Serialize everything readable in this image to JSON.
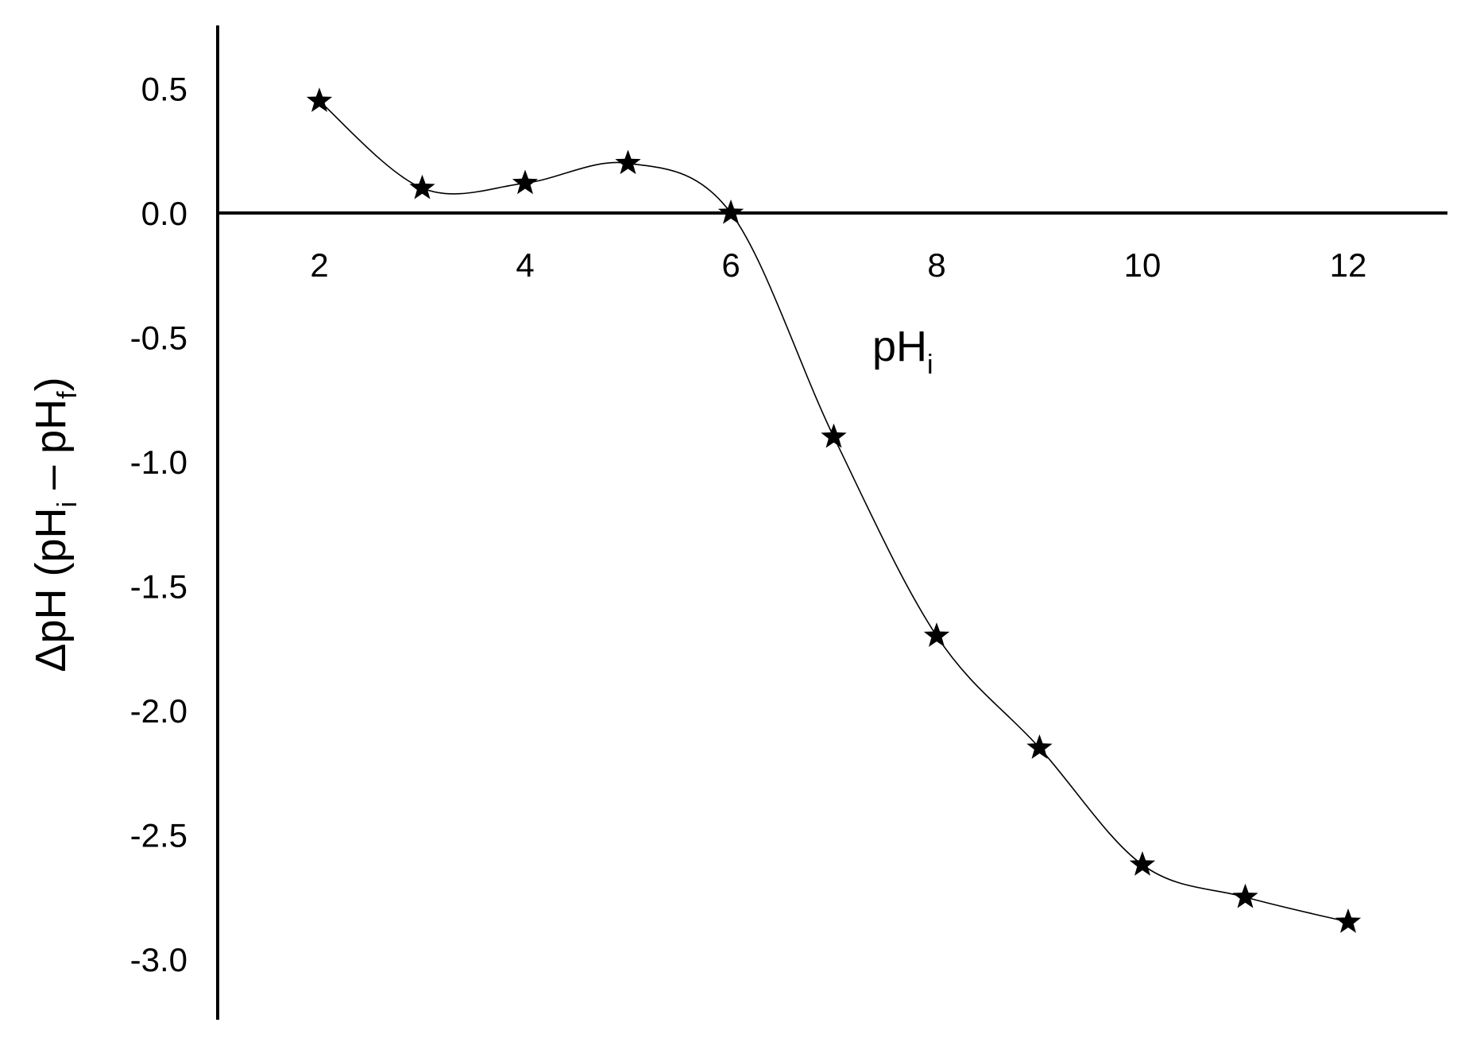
{
  "chart_data": {
    "type": "line",
    "title": "",
    "xlabel": {
      "main": "pH",
      "sub": "i"
    },
    "ylabel": {
      "part1": "ΔpH (pH",
      "sub1": "i",
      "part2": " – pH",
      "sub2": "f",
      "part3": ")"
    },
    "x_ticks": [
      2,
      4,
      6,
      8,
      10,
      12
    ],
    "y_ticks": [
      "0.5",
      "0.0",
      "-0.5",
      "-1.0",
      "-1.5",
      "-2.0",
      "-2.5",
      "-3.0"
    ],
    "xlim": [
      1,
      13
    ],
    "ylim": [
      -3.3,
      0.75
    ],
    "marker": "star",
    "smooth_curve": true,
    "grid": false,
    "series": [
      {
        "x": [
          2,
          3,
          4,
          5,
          6,
          7,
          8,
          9,
          10,
          11,
          12
        ],
        "y": [
          0.45,
          0.1,
          0.12,
          0.2,
          0.0,
          -0.9,
          -1.7,
          -2.15,
          -2.62,
          -2.75,
          -2.85
        ]
      }
    ],
    "colors": {
      "line": "#000000",
      "marker": "#000000",
      "axis": "#000000"
    }
  }
}
